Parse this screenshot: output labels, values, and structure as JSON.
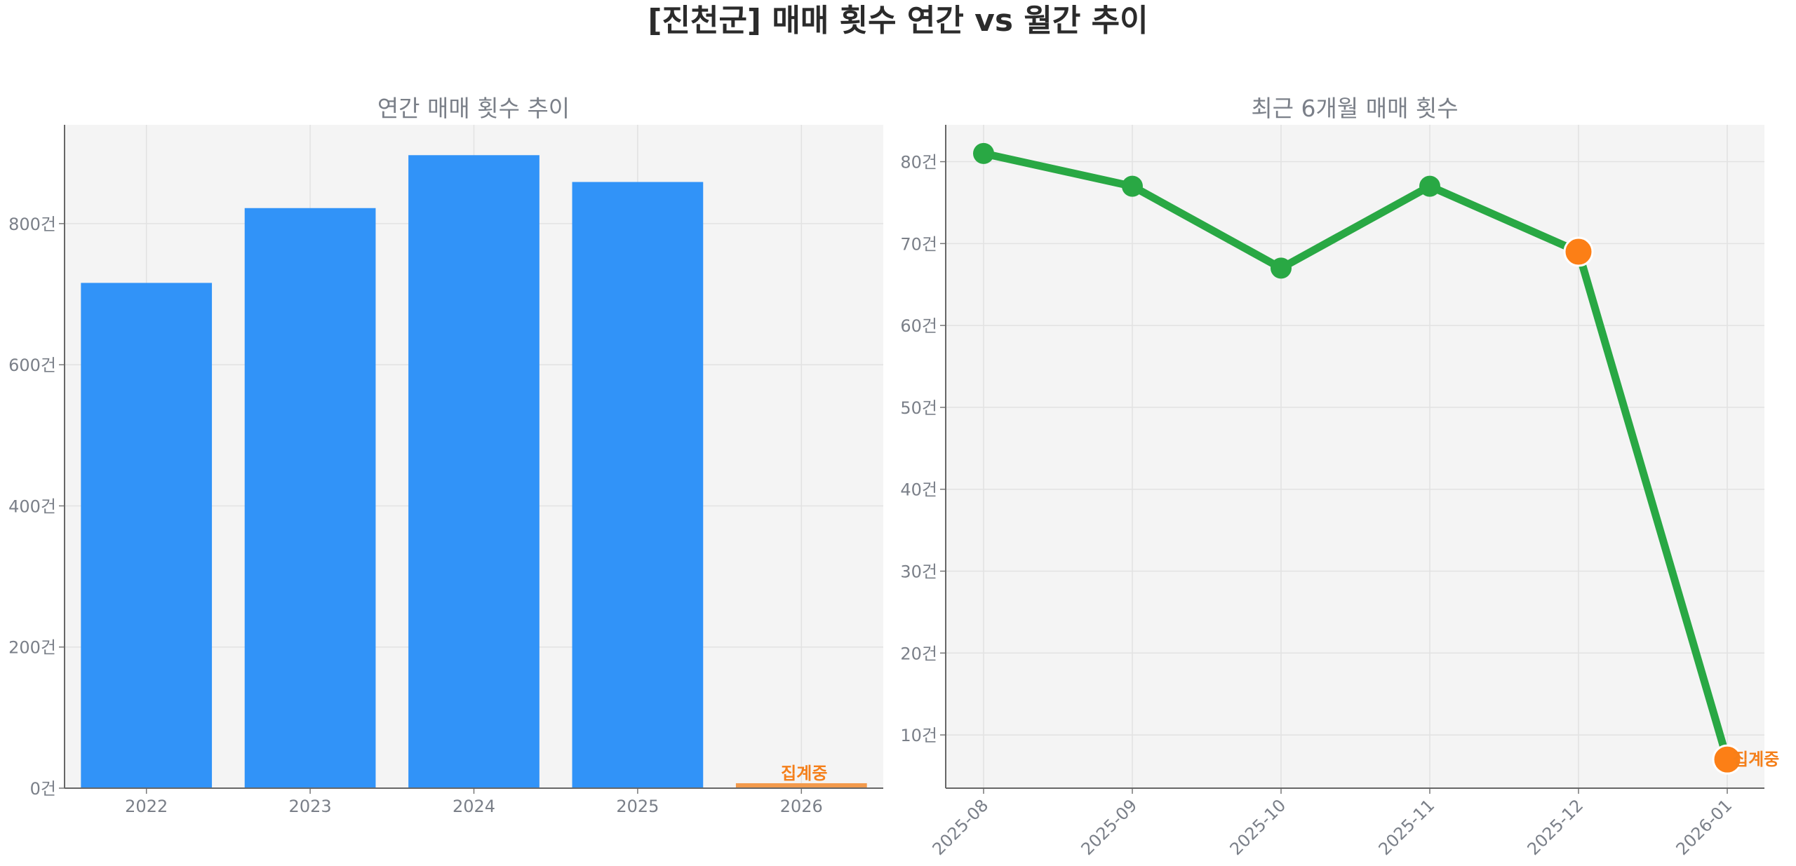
{
  "title": "[진천군] 매매 횟수 연간 vs 월간 추이",
  "colors": {
    "bar": "#3193f8",
    "bar_partial": "#f39a4c",
    "line": "#29a844",
    "highlight": "#fc7f16",
    "panel_bg": "#f4f4f4"
  },
  "chart_data": [
    {
      "type": "bar",
      "title": "연간 매매 횟수 추이",
      "categories": [
        "2022",
        "2023",
        "2024",
        "2025",
        "2026"
      ],
      "values": [
        716,
        822,
        897,
        859,
        7
      ],
      "ylim": [
        0,
        940
      ],
      "yticks": [
        0,
        200,
        400,
        600,
        800
      ],
      "ytick_labels": [
        "0건",
        "200건",
        "400건",
        "600건",
        "800건"
      ],
      "grid": true,
      "partial_index": 4,
      "partial_label": "집계중"
    },
    {
      "type": "line",
      "title": "최근 6개월 매매 횟수",
      "categories": [
        "2025-08",
        "2025-09",
        "2025-10",
        "2025-11",
        "2025-12",
        "2026-01"
      ],
      "values": [
        81,
        77,
        67,
        77,
        69,
        7
      ],
      "ylim": [
        3.5,
        84.5
      ],
      "yticks": [
        10,
        20,
        30,
        40,
        50,
        60,
        70,
        80
      ],
      "ytick_labels": [
        "10건",
        "20건",
        "30건",
        "40건",
        "50건",
        "60건",
        "70건",
        "80건"
      ],
      "grid": true,
      "highlight_indices": [
        4,
        5
      ],
      "partial_index": 5,
      "partial_label": "집계중"
    }
  ]
}
